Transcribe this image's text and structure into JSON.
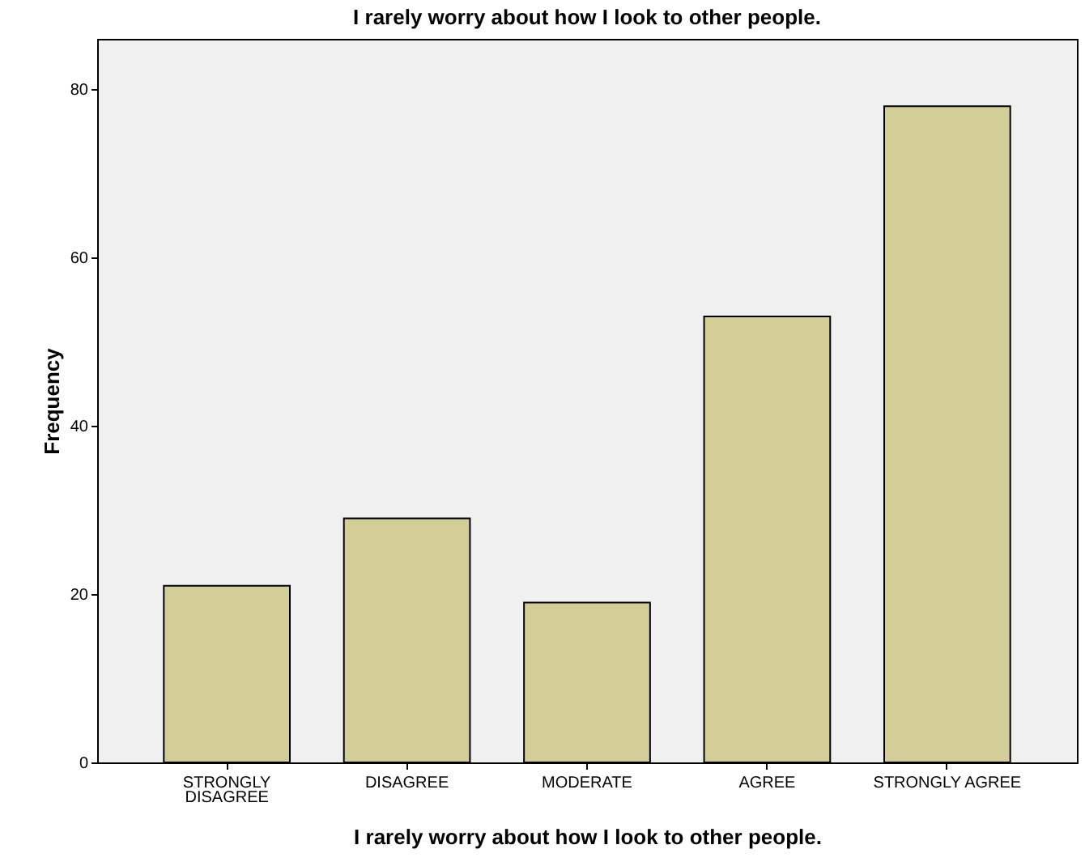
{
  "chart_data": {
    "type": "bar",
    "title": "I rarely worry about how I look to other people.",
    "xlabel": "I rarely worry about how I look to other people.",
    "ylabel": "Frequency",
    "categories": [
      "STRONGLY DISAGREE",
      "DISAGREE",
      "MODERATE",
      "AGREE",
      "STRONGLY AGREE"
    ],
    "values": [
      21,
      29,
      19,
      53,
      78
    ],
    "color": "#d3ce97",
    "ylim": [
      0,
      86
    ],
    "yticks": [
      0,
      20,
      40,
      60,
      80
    ],
    "grid": false
  }
}
